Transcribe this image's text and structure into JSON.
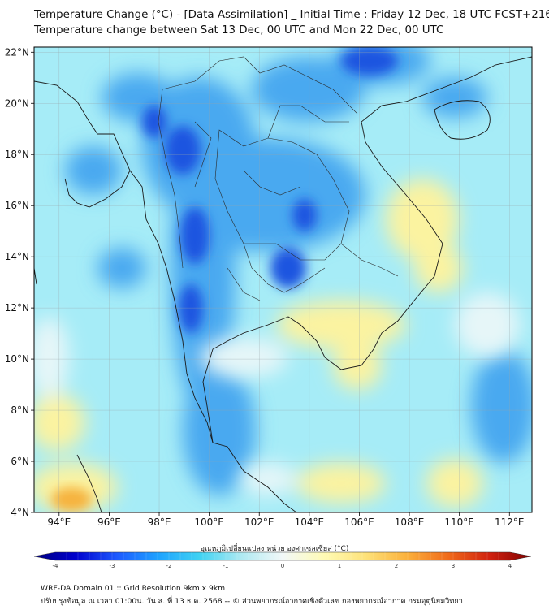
{
  "title": {
    "line1": "Temperature Change (°C) - [Data Assimilation] _ Initial Time : Friday 12 Dec, 18 UTC FCST+216",
    "line2": "Temperature change between Sat 13 Dec, 00 UTC and Mon 22 Dec, 00 UTC"
  },
  "map": {
    "lat_labels": [
      "22°N",
      "20°N",
      "18°N",
      "16°N",
      "14°N",
      "12°N",
      "10°N",
      "8°N",
      "6°N",
      "4°N"
    ],
    "lon_labels": [
      "94°E",
      "96°E",
      "98°E",
      "100°E",
      "102°E",
      "104°E",
      "106°E",
      "108°E",
      "110°E",
      "112°E"
    ],
    "lat_range": [
      4,
      22.2
    ],
    "lon_range": [
      93,
      112.9
    ],
    "colors": {
      "background": "#a6ecf7",
      "cold_strong": "#1d55e0",
      "cold": "#4aa9f0",
      "neutral": "#e6f6f8",
      "warm": "#fbf3a0",
      "hot": "#f6b23c"
    }
  },
  "colorbar": {
    "label": "อุณหภูมิเปลี่ยนแปลง หน่วย องศาเซลเซียส (°C)",
    "ticks": [
      "-4",
      "-3",
      "-2",
      "-1",
      "0",
      "1",
      "2",
      "3",
      "4"
    ],
    "min": -4,
    "max": 4,
    "stops": [
      "#000080",
      "#0000cd",
      "#1e5aff",
      "#1fa3ff",
      "#3fd2f2",
      "#aee9f2",
      "#f2f8f8",
      "#fffbb5",
      "#fde27a",
      "#fbb13c",
      "#f06a1a",
      "#d0210f",
      "#800000"
    ]
  },
  "footer": {
    "line1": "WRF-DA Domain 01 :: Grid Resolution 9km x 9km",
    "line2": "ปรับปรุงข้อมูล ณ เวลา 01:00น. วัน ส. ที่ 13 ธ.ค. 2568 -- © ส่วนพยากรณ์อากาศเชิงตัวเลข กองพยากรณ์อากาศ กรมอุตุนิยมวิทยา"
  }
}
